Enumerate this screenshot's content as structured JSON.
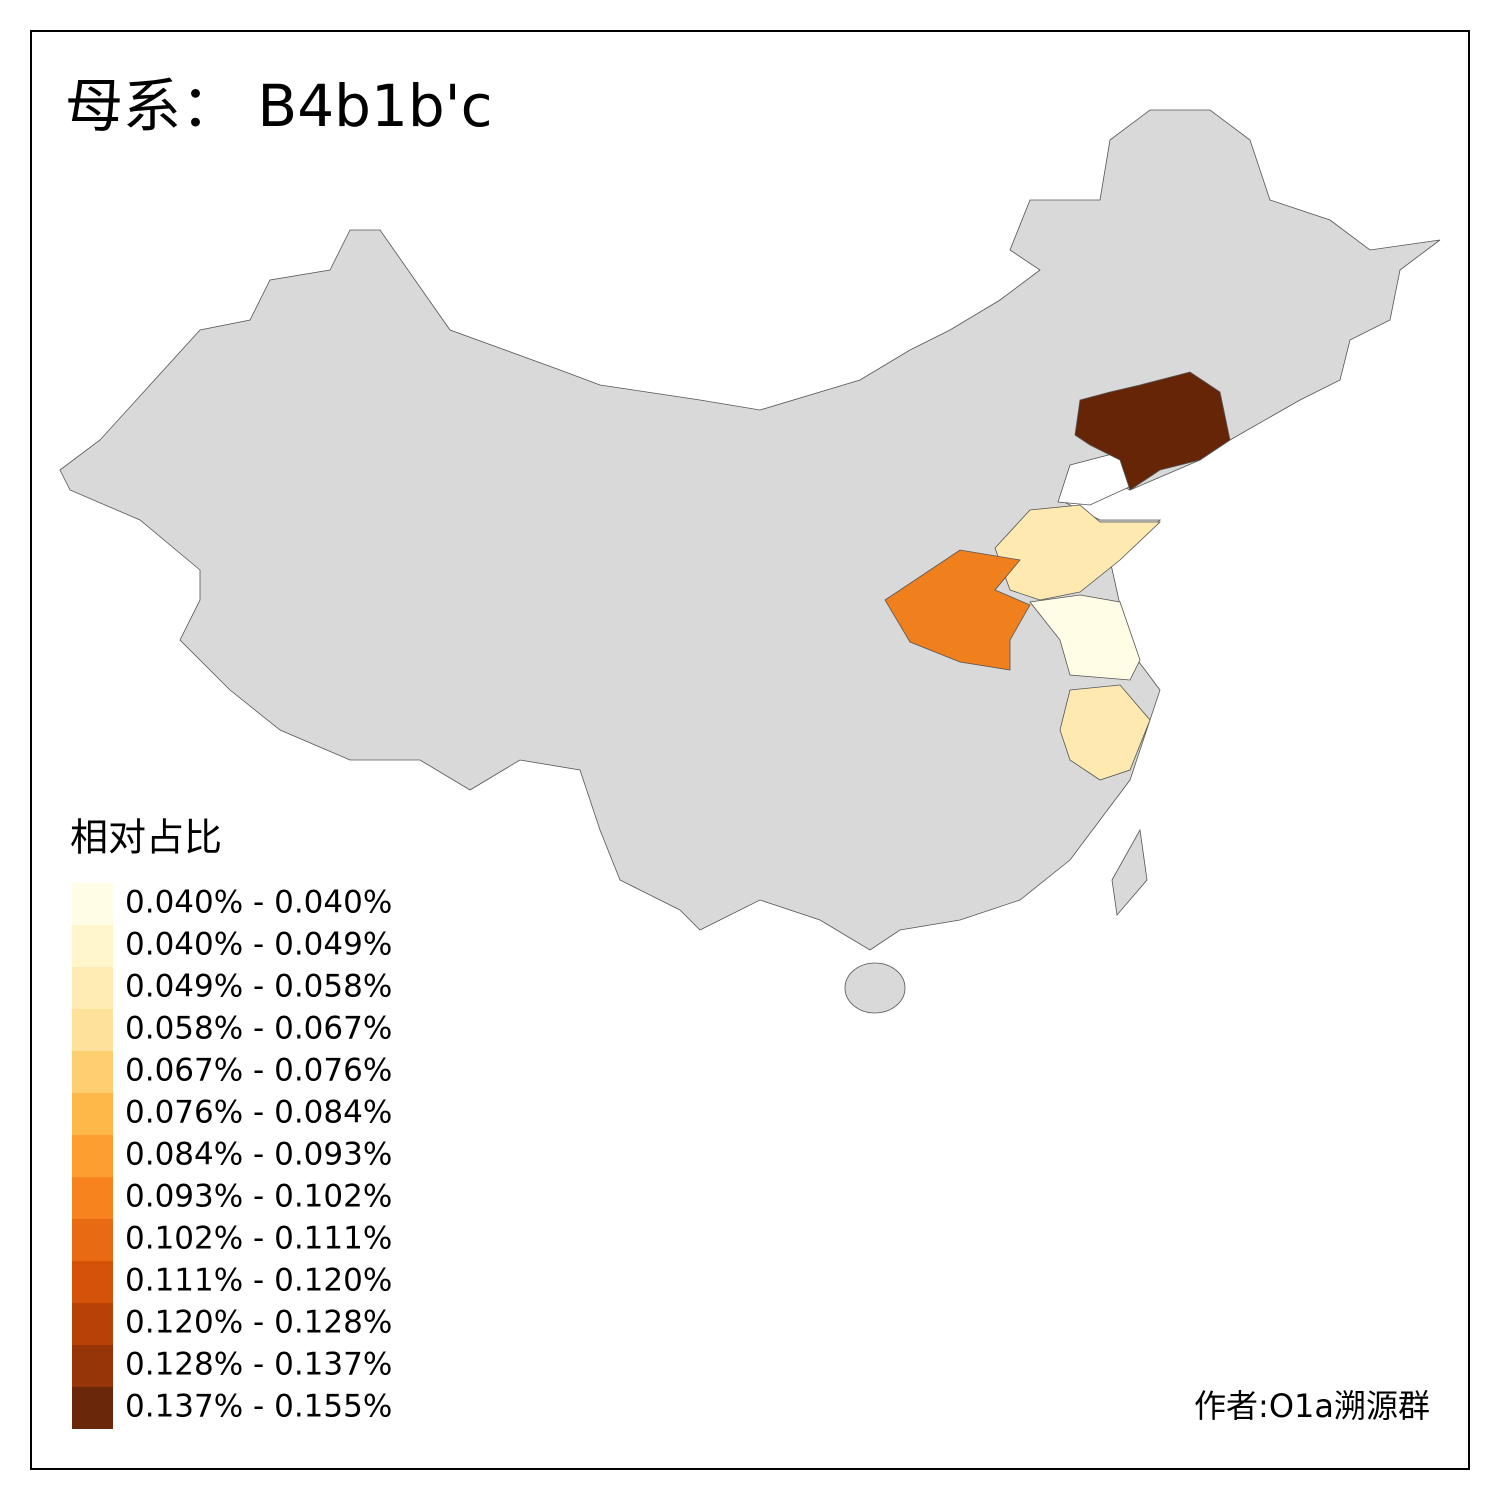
{
  "map": {
    "title": "母系： B4b1b'c",
    "legend": {
      "title": "相对占比",
      "items": [
        {
          "label": "0.040% - 0.040%",
          "color": "#fffde6"
        },
        {
          "label": "0.040% - 0.049%",
          "color": "#fff6cc"
        },
        {
          "label": "0.049% - 0.058%",
          "color": "#feecb4"
        },
        {
          "label": "0.058% - 0.067%",
          "color": "#fee29c"
        },
        {
          "label": "0.067% - 0.076%",
          "color": "#fecf70"
        },
        {
          "label": "0.076% - 0.084%",
          "color": "#feb84a"
        },
        {
          "label": "0.084% - 0.093%",
          "color": "#fd9f30"
        },
        {
          "label": "0.093% - 0.102%",
          "color": "#f7831f"
        },
        {
          "label": "0.102% - 0.111%",
          "color": "#e86a13"
        },
        {
          "label": "0.111% - 0.120%",
          "color": "#d55209"
        },
        {
          "label": "0.120% - 0.128%",
          "color": "#b84206"
        },
        {
          "label": "0.128% - 0.137%",
          "color": "#963507"
        },
        {
          "label": "0.137% - 0.155%",
          "color": "#6b2709"
        }
      ]
    },
    "credit": "作者:O1a溯源群"
  }
}
